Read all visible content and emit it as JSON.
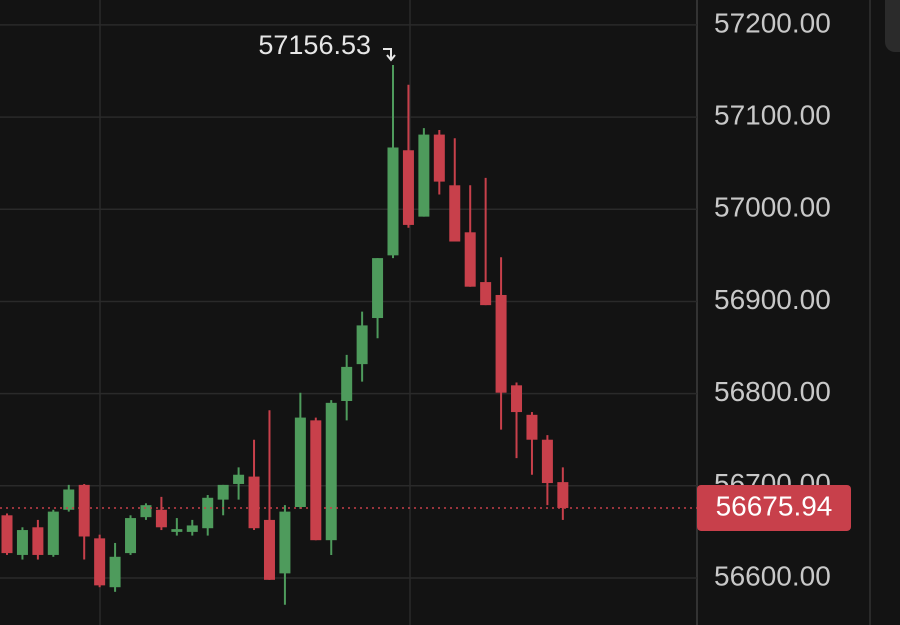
{
  "chart_data": {
    "type": "candlestick",
    "open": [
      56668,
      56625,
      56655,
      56625,
      56674,
      56701,
      56643,
      56590,
      56627,
      56666,
      56674,
      56650,
      56650,
      56654,
      56685,
      56702,
      56710,
      56663,
      56605,
      56677,
      56771,
      56641,
      56792,
      56832,
      56882,
      56950,
      57064,
      56992,
      57081,
      57026,
      56975,
      56921,
      56907,
      56809,
      56777,
      56750,
      56704
    ],
    "high": [
      56670,
      56655,
      56663,
      56674,
      56701,
      56702,
      56647,
      56638,
      56668,
      56681,
      56688,
      56665,
      56663,
      56690,
      56701,
      56720,
      56750,
      56782,
      56679,
      56801,
      56774,
      56793,
      56842,
      56889,
      56947,
      57156.53,
      57135,
      57088,
      57086,
      57077,
      57026,
      57034,
      56948,
      56812,
      56780,
      56755,
      56720
    ],
    "low": [
      56625,
      56620,
      56620,
      56623,
      56672,
      56620,
      56590,
      56585,
      56625,
      56663,
      56652,
      56646,
      56646,
      56646,
      56668,
      56685,
      56652,
      56598,
      56571,
      56675,
      56641,
      56625,
      56771,
      56813,
      56860,
      56947,
      56980,
      56992,
      57016,
      56965,
      56916,
      56896,
      56761,
      56730,
      56712,
      56679,
      56663
    ],
    "close": [
      56627,
      56652,
      56625,
      56672,
      56696,
      56645,
      56592,
      56623,
      56665,
      56679,
      56655,
      56653,
      56657,
      56687,
      56701,
      56712,
      56654,
      56598,
      56672,
      56774,
      56641,
      56790,
      56829,
      56874,
      56947,
      57067,
      56983,
      57081,
      57030,
      56965,
      56916,
      56896,
      56801,
      56780,
      56750,
      56703,
      56675.94
    ],
    "up_color": "#4e9b5c",
    "down_color": "#c8404b",
    "ylim": [
      56549,
      57227
    ],
    "yticks": [
      {
        "value": 56600,
        "label": "56600.00"
      },
      {
        "value": 56700,
        "label": "56700.00"
      },
      {
        "value": 56800,
        "label": "56800.00"
      },
      {
        "value": 56900,
        "label": "56900.00"
      },
      {
        "value": 57000,
        "label": "57000.00"
      },
      {
        "value": 57100,
        "label": "57100.00"
      },
      {
        "value": 57200,
        "label": "57200.00"
      }
    ],
    "grid": true
  }
}
